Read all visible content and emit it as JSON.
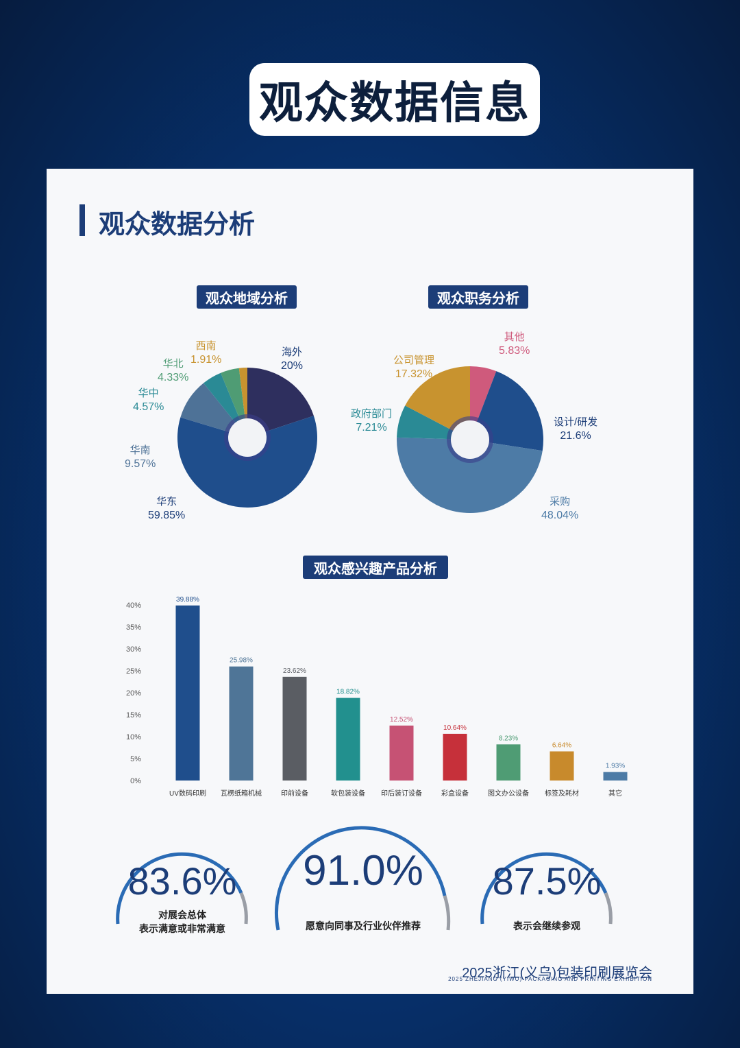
{
  "header": {
    "title": "观众数据信息"
  },
  "section": {
    "title": "观众数据分析"
  },
  "colors": {
    "navy": "#1c3d78",
    "accent": "#2a6bb5"
  },
  "chart_data": [
    {
      "type": "pie",
      "title": "观众地域分析",
      "slices": [
        {
          "label": "海外",
          "value": 20,
          "display": "20%",
          "color": "#2e2f5e"
        },
        {
          "label": "华东",
          "value": 59.85,
          "display": "59.85%",
          "color": "#1f4e8c"
        },
        {
          "label": "华南",
          "value": 9.57,
          "display": "9.57%",
          "color": "#4e7297"
        },
        {
          "label": "华中",
          "value": 4.57,
          "display": "4.57%",
          "color": "#2a8a95"
        },
        {
          "label": "华北",
          "value": 4.33,
          "display": "4.33%",
          "color": "#4f9c74"
        },
        {
          "label": "西南",
          "value": 1.91,
          "display": "1.91%",
          "color": "#c8932f"
        }
      ]
    },
    {
      "type": "pie",
      "title": "观众职务分析",
      "slices": [
        {
          "label": "其他",
          "value": 5.83,
          "display": "5.83%",
          "color": "#cf5a7c"
        },
        {
          "label": "设计/研发",
          "value": 21.6,
          "display": "21.6%",
          "color": "#1f4e8c"
        },
        {
          "label": "采购",
          "value": 48.04,
          "display": "48.04%",
          "color": "#4d7ba6"
        },
        {
          "label": "政府部门",
          "value": 7.21,
          "display": "7.21%",
          "color": "#2a8a95"
        },
        {
          "label": "公司管理",
          "value": 17.32,
          "display": "17.32%",
          "color": "#c8932f"
        }
      ]
    },
    {
      "type": "bar",
      "title": "观众感兴趣产品分析",
      "categories": [
        "UV数码印刷",
        "瓦楞纸箱机械",
        "印前设备",
        "软包装设备",
        "印后装订设备",
        "彩盒设备",
        "图文办公设备",
        "标签及耗材",
        "其它"
      ],
      "values": [
        39.88,
        25.98,
        23.62,
        18.82,
        12.52,
        10.64,
        8.23,
        6.64,
        1.93
      ],
      "labels": [
        "39.88%",
        "25.98%",
        "23.62%",
        "18.82%",
        "12.52%",
        "10.64%",
        "8.23%",
        "6.64%",
        "1.93%"
      ],
      "colors": [
        "#1f4e8c",
        "#4f7597",
        "#5a5d63",
        "#22908e",
        "#c65274",
        "#c6303a",
        "#4f9c74",
        "#c88a2c",
        "#4d7ba6"
      ],
      "yticks": [
        "0%",
        "5%",
        "10%",
        "15%",
        "20%",
        "25%",
        "30%",
        "35%",
        "40%"
      ],
      "ylim": [
        0,
        40
      ]
    }
  ],
  "gauges": [
    {
      "value": "83.6%",
      "desc1": "对展会总体",
      "desc2": "表示满意或非常满意"
    },
    {
      "value": "91.0%",
      "desc1": "愿意向同事及行业伙伴推荐",
      "desc2": ""
    },
    {
      "value": "87.5%",
      "desc1": "表示会继续参观",
      "desc2": ""
    }
  ],
  "footer": {
    "title": "2025浙江(义乌)包装印刷展览会",
    "subtitle": "2025 ZHEJIANG (YIWU) PACKAGING AND PRINTING EXHIBITION"
  }
}
